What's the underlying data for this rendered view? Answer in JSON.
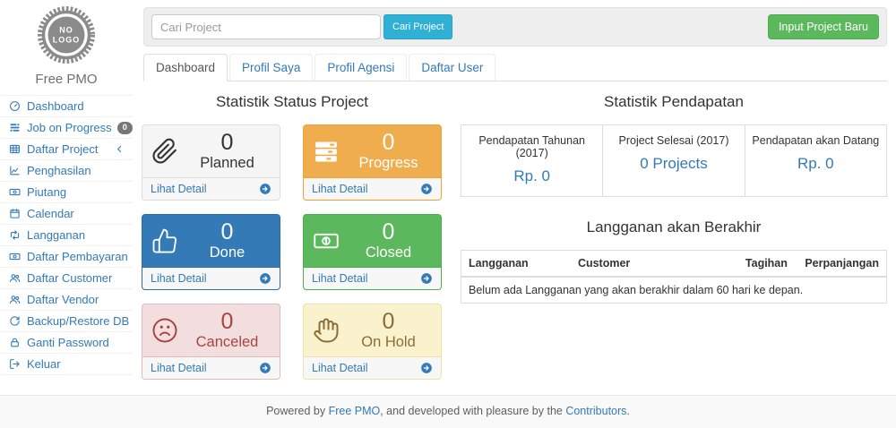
{
  "app": {
    "logo_line1": "NO",
    "logo_line2": "LOGO",
    "brand": "Free PMO"
  },
  "sidebar": {
    "items": [
      {
        "label": "Dashboard",
        "icon": "dashboard-icon"
      },
      {
        "label": "Job on Progress",
        "icon": "tasks-icon",
        "badge": "0"
      },
      {
        "label": "Daftar Project",
        "icon": "table-icon",
        "chevron": true
      },
      {
        "label": "Penghasilan",
        "icon": "chart-line-icon"
      },
      {
        "label": "Piutang",
        "icon": "money-icon"
      },
      {
        "label": "Calendar",
        "icon": "calendar-icon"
      },
      {
        "label": "Langganan",
        "icon": "retweet-icon"
      },
      {
        "label": "Daftar Pembayaran",
        "icon": "money-icon"
      },
      {
        "label": "Daftar Customer",
        "icon": "users-icon"
      },
      {
        "label": "Daftar Vendor",
        "icon": "users-icon"
      },
      {
        "label": "Backup/Restore DB",
        "icon": "refresh-icon"
      },
      {
        "label": "Ganti Password",
        "icon": "lock-icon"
      },
      {
        "label": "Keluar",
        "icon": "signout-icon"
      }
    ]
  },
  "topbar": {
    "search_placeholder": "Cari Project",
    "search_button": "Cari Project",
    "new_project_button": "Input Project Baru"
  },
  "tabs": [
    {
      "label": "Dashboard",
      "active": true
    },
    {
      "label": "Profil Saya"
    },
    {
      "label": "Profil Agensi"
    },
    {
      "label": "Daftar User"
    }
  ],
  "status_section": {
    "title": "Statistik Status Project",
    "detail_link": "Lihat Detail",
    "cards": [
      {
        "status": "Planned",
        "count": "0",
        "icon": "paperclip-icon",
        "style": "default"
      },
      {
        "status": "Progress",
        "count": "0",
        "icon": "server-icon",
        "style": "warning"
      },
      {
        "status": "Done",
        "count": "0",
        "icon": "thumbs-up-icon",
        "style": "primary"
      },
      {
        "status": "Closed",
        "count": "0",
        "icon": "money-icon",
        "style": "success"
      },
      {
        "status": "Canceled",
        "count": "0",
        "icon": "frown-icon",
        "style": "danger"
      },
      {
        "status": "On Hold",
        "count": "0",
        "icon": "hand-icon",
        "style": "hold"
      }
    ]
  },
  "income_section": {
    "title": "Statistik Pendapatan",
    "stats": [
      {
        "label": "Pendapatan Tahunan (2017)",
        "value": "Rp. 0"
      },
      {
        "label": "Project Selesai (2017)",
        "value": "0 Projects"
      },
      {
        "label": "Pendapatan akan Datang",
        "value": "Rp. 0"
      }
    ]
  },
  "subscription_section": {
    "title": "Langganan akan Berakhir",
    "columns": [
      "Langganan",
      "Customer",
      "Tagihan",
      "Perpanjangan"
    ],
    "empty_message": "Belum ada Langganan yang akan berakhir dalam 60 hari ke depan."
  },
  "footer": {
    "prefix": "Powered by ",
    "link1": "Free PMO",
    "middle": ", and developed with pleasure by the ",
    "link2": "Contributors",
    "suffix": "."
  },
  "colors": {
    "link": "#337ab7",
    "info_button": "#31b0d5",
    "success": "#5cb85c",
    "warning": "#f0ad4e",
    "danger_bg": "#f2dede",
    "danger_text": "#a94442",
    "hold_bg": "#faf2cc",
    "hold_text": "#8a6d3b",
    "badge": "#777777"
  }
}
